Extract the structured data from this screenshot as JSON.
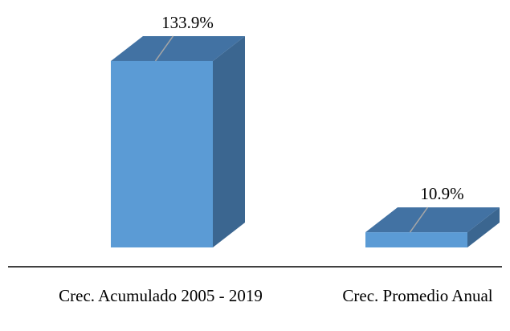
{
  "chart_data": {
    "type": "bar3d",
    "categories": [
      "Crec. Acumulado 2005 - 2019",
      "Crec. Promedio Anual"
    ],
    "values": [
      133.9,
      10.9
    ],
    "value_labels": [
      "133.9%",
      "10.9%"
    ],
    "color": "#5b9bd5"
  }
}
